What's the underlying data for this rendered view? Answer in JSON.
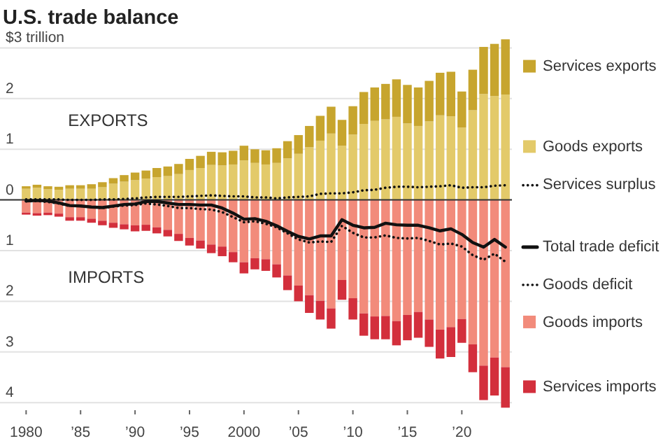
{
  "chart_data": {
    "type": "bar",
    "title": "U.S. trade balance",
    "stacked": true,
    "grid": "y",
    "legend": "right",
    "annotations": [
      "EXPORTS",
      "IMPORTS"
    ],
    "x": [
      1980,
      1981,
      1982,
      1983,
      1984,
      1985,
      1986,
      1987,
      1988,
      1989,
      1990,
      1991,
      1992,
      1993,
      1994,
      1995,
      1996,
      1997,
      1998,
      1999,
      2000,
      2001,
      2002,
      2003,
      2004,
      2005,
      2006,
      2007,
      2008,
      2009,
      2010,
      2011,
      2012,
      2013,
      2014,
      2015,
      2016,
      2017,
      2018,
      2019,
      2020,
      2021,
      2022,
      2023,
      2024
    ],
    "xlim": [
      1979.4,
      2024.6
    ],
    "xticks": [
      {
        "value": 1980,
        "label": "1980"
      },
      {
        "value": 1985,
        "label": "’85"
      },
      {
        "value": 1990,
        "label": "’90"
      },
      {
        "value": 1995,
        "label": "’95"
      },
      {
        "value": 2000,
        "label": "2000"
      },
      {
        "value": 2005,
        "label": "’05"
      },
      {
        "value": 2010,
        "label": "’10"
      },
      {
        "value": 2015,
        "label": "’15"
      },
      {
        "value": 2020,
        "label": "’20"
      }
    ],
    "ylim": [
      -4.15,
      3.2
    ],
    "yticks": [
      {
        "value": 3,
        "label": "$3 trillion"
      },
      2,
      1,
      0,
      {
        "value": -1,
        "label": "1"
      },
      {
        "value": -2,
        "label": "2"
      },
      {
        "value": -3,
        "label": "3"
      },
      {
        "value": -4,
        "label": "4"
      }
    ],
    "series": [
      {
        "name": "Goods exports",
        "color": "#e3ca6a",
        "values": [
          0.22,
          0.24,
          0.21,
          0.2,
          0.22,
          0.22,
          0.22,
          0.25,
          0.32,
          0.36,
          0.39,
          0.42,
          0.45,
          0.47,
          0.51,
          0.59,
          0.63,
          0.69,
          0.68,
          0.7,
          0.78,
          0.73,
          0.7,
          0.73,
          0.82,
          0.91,
          1.04,
          1.17,
          1.31,
          1.07,
          1.29,
          1.5,
          1.56,
          1.59,
          1.64,
          1.51,
          1.46,
          1.55,
          1.67,
          1.65,
          1.43,
          1.77,
          2.09,
          2.05,
          2.08
        ]
      },
      {
        "name": "Services exports",
        "color": "#c7a52e",
        "values": [
          0.05,
          0.06,
          0.06,
          0.06,
          0.07,
          0.07,
          0.09,
          0.1,
          0.11,
          0.13,
          0.15,
          0.16,
          0.18,
          0.19,
          0.2,
          0.22,
          0.24,
          0.26,
          0.26,
          0.27,
          0.29,
          0.27,
          0.28,
          0.29,
          0.34,
          0.37,
          0.42,
          0.49,
          0.53,
          0.51,
          0.56,
          0.63,
          0.66,
          0.7,
          0.74,
          0.76,
          0.76,
          0.8,
          0.84,
          0.88,
          0.71,
          0.8,
          0.93,
          1.03,
          1.09
        ]
      },
      {
        "name": "Goods imports",
        "color": "#f28b7b",
        "values": [
          -0.25,
          -0.26,
          -0.25,
          -0.27,
          -0.34,
          -0.34,
          -0.37,
          -0.41,
          -0.45,
          -0.48,
          -0.5,
          -0.49,
          -0.54,
          -0.59,
          -0.67,
          -0.75,
          -0.8,
          -0.88,
          -0.92,
          -1.03,
          -1.23,
          -1.15,
          -1.17,
          -1.27,
          -1.49,
          -1.69,
          -1.88,
          -1.99,
          -2.14,
          -1.58,
          -1.94,
          -2.24,
          -2.3,
          -2.29,
          -2.39,
          -2.27,
          -2.21,
          -2.36,
          -2.56,
          -2.51,
          -2.35,
          -2.85,
          -3.27,
          -3.11,
          -3.3
        ]
      },
      {
        "name": "Services imports",
        "color": "#d32f3c",
        "values": [
          -0.04,
          -0.05,
          -0.05,
          -0.06,
          -0.07,
          -0.07,
          -0.08,
          -0.09,
          -0.1,
          -0.1,
          -0.12,
          -0.12,
          -0.12,
          -0.13,
          -0.14,
          -0.15,
          -0.16,
          -0.17,
          -0.19,
          -0.2,
          -0.22,
          -0.22,
          -0.23,
          -0.26,
          -0.29,
          -0.31,
          -0.35,
          -0.37,
          -0.4,
          -0.39,
          -0.42,
          -0.44,
          -0.45,
          -0.46,
          -0.48,
          -0.5,
          -0.51,
          -0.54,
          -0.57,
          -0.59,
          -0.47,
          -0.55,
          -0.68,
          -0.75,
          -0.8
        ]
      },
      {
        "name": "Services surplus",
        "type": "line",
        "line_style": "dotted",
        "color": "#111111",
        "values": [
          0.01,
          0.01,
          0.01,
          0.01,
          0,
          0,
          0,
          0.01,
          0.01,
          0.02,
          0.03,
          0.05,
          0.06,
          0.06,
          0.06,
          0.07,
          0.08,
          0.09,
          0.08,
          0.07,
          0.07,
          0.05,
          0.05,
          0.03,
          0.05,
          0.06,
          0.07,
          0.12,
          0.13,
          0.13,
          0.15,
          0.19,
          0.2,
          0.24,
          0.26,
          0.26,
          0.25,
          0.26,
          0.27,
          0.29,
          0.24,
          0.25,
          0.25,
          0.28,
          0.29
        ]
      },
      {
        "name": "Total trade deficit",
        "type": "line",
        "line_style": "solid",
        "color": "#111111",
        "values": [
          -0.02,
          -0.01,
          -0.02,
          -0.06,
          -0.11,
          -0.12,
          -0.14,
          -0.15,
          -0.12,
          -0.09,
          -0.08,
          -0.03,
          -0.03,
          -0.06,
          -0.09,
          -0.09,
          -0.1,
          -0.1,
          -0.16,
          -0.26,
          -0.38,
          -0.37,
          -0.42,
          -0.51,
          -0.62,
          -0.72,
          -0.77,
          -0.71,
          -0.71,
          -0.39,
          -0.5,
          -0.55,
          -0.54,
          -0.46,
          -0.49,
          -0.5,
          -0.5,
          -0.55,
          -0.61,
          -0.57,
          -0.68,
          -0.84,
          -0.93,
          -0.78,
          -0.93
        ]
      },
      {
        "name": "Goods deficit",
        "type": "line",
        "line_style": "dotted",
        "color": "#111111",
        "values": [
          -0.03,
          -0.02,
          -0.04,
          -0.07,
          -0.12,
          -0.12,
          -0.14,
          -0.16,
          -0.13,
          -0.11,
          -0.1,
          -0.07,
          -0.09,
          -0.12,
          -0.16,
          -0.16,
          -0.18,
          -0.19,
          -0.24,
          -0.34,
          -0.44,
          -0.42,
          -0.47,
          -0.54,
          -0.66,
          -0.78,
          -0.84,
          -0.82,
          -0.83,
          -0.51,
          -0.65,
          -0.74,
          -0.74,
          -0.7,
          -0.75,
          -0.76,
          -0.75,
          -0.81,
          -0.88,
          -0.86,
          -0.92,
          -1.09,
          -1.18,
          -1.06,
          -1.22
        ]
      }
    ]
  }
}
